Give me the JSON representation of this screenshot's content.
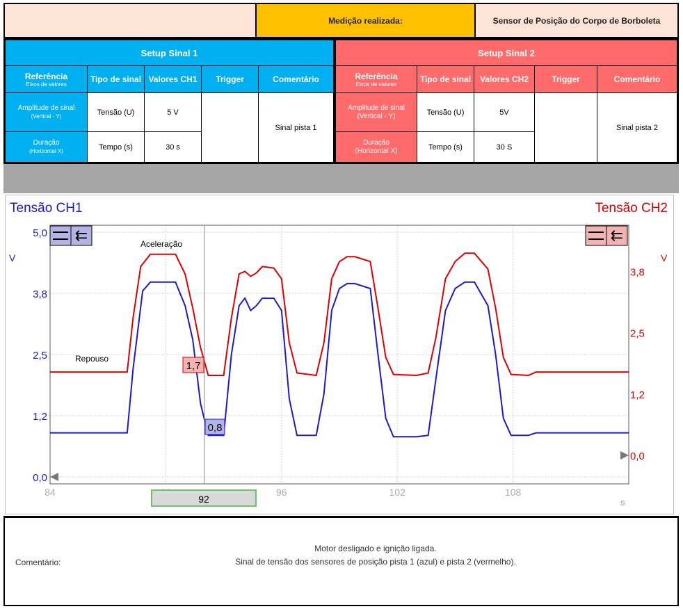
{
  "header": {
    "label": "Medição realizada:",
    "value": "Sensor de Posição do Corpo de Borboleta"
  },
  "setup1": {
    "title": "Setup Sinal 1",
    "cols": {
      "ref": "Referência",
      "ref_sub": "Eixos de valores",
      "tipo": "Tipo de sinal",
      "valores": "Valores CH1",
      "trigger": "Trigger",
      "comentario": "Comentário"
    },
    "row1": {
      "label": "Amplitude de sinal",
      "sub": "(Vertical - Y)",
      "tipo": "Tensão (U)",
      "valor": "5 V"
    },
    "row2": {
      "label": "Duração",
      "sub": "(Horizontal X)",
      "tipo": "Tempo (s)",
      "valor": "30 s"
    },
    "comment": "Sinal pista 1"
  },
  "setup2": {
    "title": "Setup Sinal 2",
    "cols": {
      "ref": "Referência",
      "ref_sub": "Eixos de valores",
      "tipo": "Tipo de sinal",
      "valores": "Valores CH2",
      "trigger": "Trigger",
      "comentario": "Comentário"
    },
    "row1": {
      "label": "Amplitude de sinal",
      "sub": "(Vertical - Y)",
      "tipo": "Tensão (U)",
      "valor": "5V"
    },
    "row2": {
      "label": "Duração",
      "sub": "(Horizontal X)",
      "tipo": "Tempo (s)",
      "valor": "30 S"
    },
    "comment": "Sinal pista 2"
  },
  "chart_data": {
    "type": "line",
    "left_title": "Tensão CH1",
    "right_title": "Tensão CH2",
    "left_unit": "V",
    "right_unit": "V",
    "x_unit": "s",
    "xlim": [
      84,
      114
    ],
    "left_ylim": [
      0,
      5.0
    ],
    "right_ylim": [
      0,
      4.55
    ],
    "left_ticks": [
      "0,0",
      "1,2",
      "2,5",
      "3,8",
      "5,0"
    ],
    "left_tick_values": [
      0,
      1.25,
      2.5,
      3.75,
      5.0
    ],
    "right_ticks": [
      "0,0",
      "1,2",
      "2,5",
      "3,8"
    ],
    "right_tick_values": [
      0,
      1.25,
      2.5,
      3.75
    ],
    "x_ticks": [
      "84",
      "90",
      "96",
      "102",
      "108"
    ],
    "x_tick_values": [
      84,
      90,
      96,
      102,
      108
    ],
    "cursor_x": 92,
    "cursor_label": "92",
    "marker_ch1": "0,8",
    "marker_ch2": "1,7",
    "annotations": {
      "aceleracao": "Aceleração",
      "repouso": "Repouso"
    },
    "colors": {
      "ch1": "#1a1acc",
      "ch2": "#dd0000"
    },
    "series": [
      {
        "name": "Tensão CH1",
        "axis": "left",
        "x": [
          84,
          88,
          88.3,
          88.8,
          89.2,
          90.5,
          91.0,
          91.4,
          91.8,
          92.2,
          92.6,
          93.0,
          93.4,
          93.8,
          94.1,
          94.4,
          94.7,
          95.0,
          95.6,
          96.0,
          96.4,
          96.8,
          97.8,
          98.2,
          98.6,
          99.0,
          99.4,
          99.8,
          100.6,
          101.0,
          101.4,
          101.8,
          103.0,
          103.6,
          104.0,
          104.5,
          105.0,
          105.5,
          106.0,
          106.7,
          107.1,
          107.5,
          107.9,
          108.8,
          109.2,
          114.0
        ],
        "y": [
          0.9,
          0.9,
          2.2,
          3.8,
          3.98,
          3.98,
          3.5,
          2.8,
          1.5,
          0.85,
          0.85,
          0.85,
          2.5,
          3.5,
          3.65,
          3.4,
          3.5,
          3.65,
          3.65,
          3.4,
          1.6,
          0.85,
          0.85,
          1.7,
          3.4,
          3.85,
          3.95,
          3.95,
          3.85,
          2.5,
          1.2,
          0.82,
          0.82,
          0.85,
          2.0,
          3.4,
          3.85,
          3.98,
          3.98,
          3.5,
          2.5,
          1.2,
          0.85,
          0.85,
          0.9,
          0.9
        ]
      },
      {
        "name": "Tensão CH2",
        "axis": "right",
        "x": [
          84,
          88,
          88.3,
          88.7,
          89.2,
          90.5,
          91.0,
          91.4,
          91.8,
          92.2,
          92.6,
          93.0,
          93.4,
          93.8,
          94.1,
          94.4,
          94.7,
          95.0,
          95.6,
          96.0,
          96.4,
          96.8,
          97.8,
          98.2,
          98.6,
          99.0,
          99.4,
          99.8,
          100.6,
          101.0,
          101.4,
          101.8,
          103.0,
          103.6,
          104.0,
          104.5,
          105.0,
          105.5,
          106.0,
          106.7,
          107.1,
          107.5,
          107.9,
          108.8,
          109.2,
          114.0
        ],
        "y": [
          1.7,
          1.7,
          2.8,
          3.85,
          4.1,
          4.1,
          3.7,
          3.0,
          2.2,
          1.63,
          1.63,
          1.63,
          2.8,
          3.7,
          3.75,
          3.65,
          3.72,
          3.85,
          3.82,
          3.6,
          2.3,
          1.68,
          1.63,
          2.3,
          3.6,
          3.95,
          4.05,
          4.05,
          3.95,
          3.0,
          2.0,
          1.65,
          1.63,
          1.68,
          2.4,
          3.6,
          3.95,
          4.12,
          4.12,
          3.8,
          3.0,
          2.0,
          1.65,
          1.63,
          1.7,
          1.7
        ]
      }
    ]
  },
  "comment": {
    "label": "Comentário:",
    "line1": "Motor desligado e ignição ligada.",
    "line2": "Sinal de tensão dos sensores de posição pista 1 (azul) e pista 2 (vermelho)."
  }
}
